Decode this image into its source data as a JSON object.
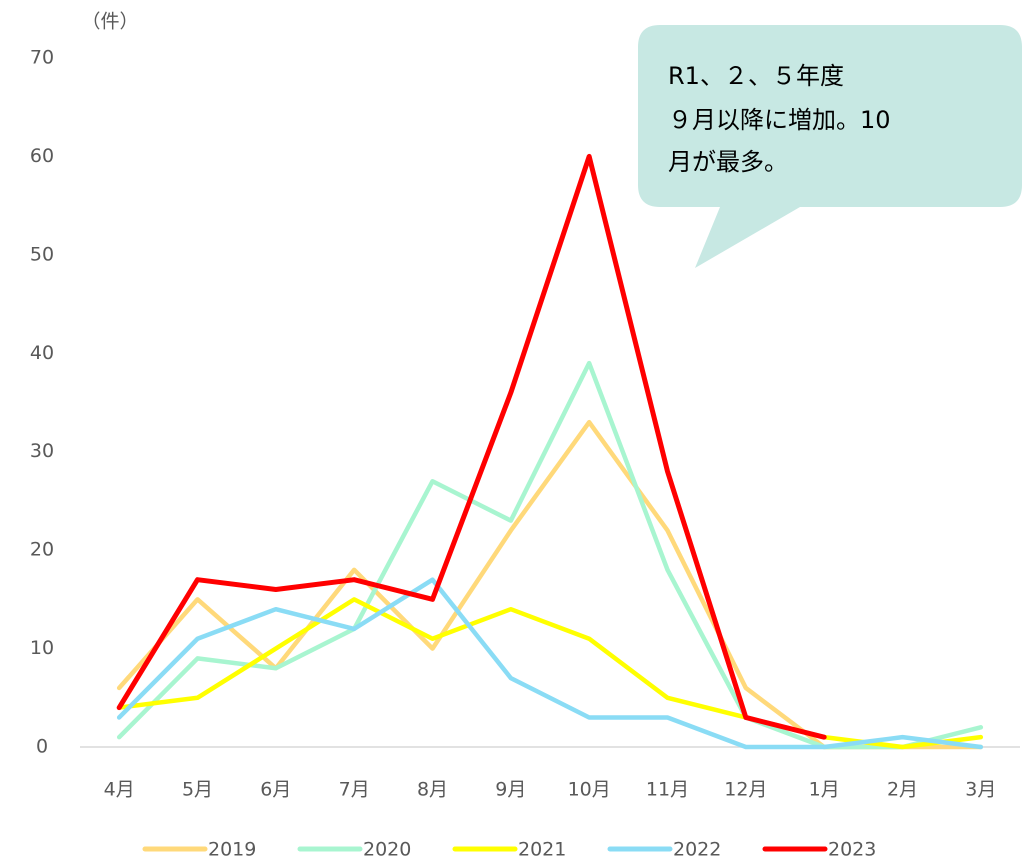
{
  "chart_data": {
    "type": "line",
    "y_unit_label": "（件）",
    "annotation": [
      "R1、２、５年度",
      " ９月以降に増加。10",
      "月が最多。"
    ],
    "categories": [
      "4月",
      "5月",
      "6月",
      "7月",
      "8月",
      "9月",
      "10月",
      "11月",
      "12月",
      "1月",
      "2月",
      "3月"
    ],
    "series": [
      {
        "name": "2019",
        "color": "#FFD97A",
        "values": [
          6,
          15,
          8,
          18,
          10,
          22,
          33,
          22,
          6,
          0,
          0,
          0
        ]
      },
      {
        "name": "2020",
        "color": "#A8F5D0",
        "values": [
          1,
          9,
          8,
          12,
          27,
          23,
          39,
          18,
          3,
          0,
          0,
          2
        ]
      },
      {
        "name": "2021",
        "color": "#FFFF00",
        "values": [
          4,
          5,
          10,
          15,
          11,
          14,
          11,
          5,
          3,
          1,
          0,
          1
        ]
      },
      {
        "name": "2022",
        "color": "#8ADCF5",
        "values": [
          3,
          11,
          14,
          12,
          17,
          7,
          3,
          3,
          0,
          0,
          1,
          0
        ]
      },
      {
        "name": "2023",
        "color": "#FF0000",
        "values": [
          4,
          17,
          16,
          17,
          15,
          36,
          60,
          28,
          3,
          1,
          null,
          null
        ]
      }
    ],
    "ylim": [
      0,
      70
    ],
    "yticks": [
      0,
      10,
      20,
      30,
      40,
      50,
      60,
      70
    ],
    "grid": false,
    "legend": "bottom"
  }
}
